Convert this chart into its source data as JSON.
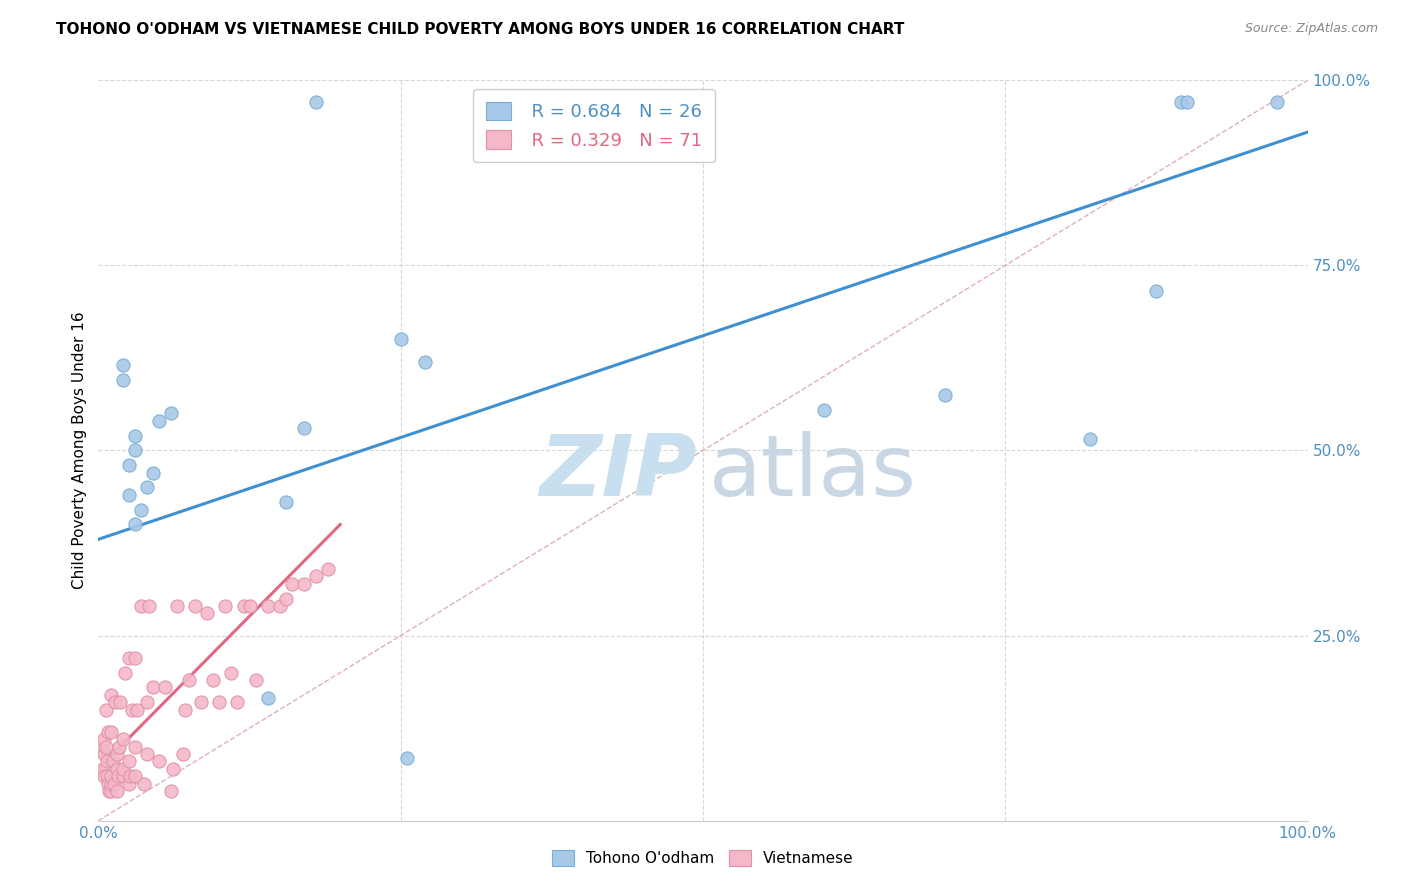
{
  "title": "TOHONO O'ODHAM VS VIETNAMESE CHILD POVERTY AMONG BOYS UNDER 16 CORRELATION CHART",
  "source": "Source: ZipAtlas.com",
  "ylabel": "Child Poverty Among Boys Under 16",
  "xlim": [
    0,
    1
  ],
  "ylim": [
    0,
    1
  ],
  "legend_r1": "R = 0.684",
  "legend_n1": "N = 26",
  "legend_r2": "R = 0.329",
  "legend_n2": "N = 71",
  "blue_color": "#a8c8e8",
  "blue_edge": "#7aaed0",
  "pink_color": "#f4b8c8",
  "pink_edge": "#e090a8",
  "blue_line_color": "#4090d0",
  "pink_line_color": "#e06880",
  "diag_color": "#d0d0d0",
  "grid_color": "#d8d8d8",
  "tick_color": "#5090c0",
  "tohono_x": [
    0.02,
    0.02,
    0.025,
    0.025,
    0.03,
    0.03,
    0.03,
    0.035,
    0.04,
    0.045,
    0.05,
    0.06,
    0.14,
    0.155,
    0.17,
    0.18,
    0.25,
    0.255,
    0.27,
    0.6,
    0.7,
    0.82,
    0.875,
    0.895,
    0.9,
    0.975
  ],
  "tohono_y": [
    0.595,
    0.615,
    0.44,
    0.48,
    0.5,
    0.52,
    0.4,
    0.42,
    0.45,
    0.47,
    0.54,
    0.55,
    0.165,
    0.43,
    0.53,
    0.97,
    0.65,
    0.085,
    0.62,
    0.555,
    0.575,
    0.515,
    0.715,
    0.97,
    0.97,
    0.97
  ],
  "viet_x": [
    0.003,
    0.004,
    0.005,
    0.005,
    0.005,
    0.006,
    0.006,
    0.007,
    0.007,
    0.008,
    0.008,
    0.009,
    0.01,
    0.01,
    0.01,
    0.01,
    0.01,
    0.012,
    0.013,
    0.014,
    0.015,
    0.015,
    0.015,
    0.016,
    0.017,
    0.018,
    0.02,
    0.02,
    0.02,
    0.022,
    0.025,
    0.025,
    0.025,
    0.026,
    0.028,
    0.03,
    0.03,
    0.03,
    0.032,
    0.035,
    0.038,
    0.04,
    0.04,
    0.042,
    0.045,
    0.05,
    0.055,
    0.06,
    0.062,
    0.065,
    0.07,
    0.072,
    0.075,
    0.08,
    0.085,
    0.09,
    0.095,
    0.1,
    0.105,
    0.11,
    0.115,
    0.12,
    0.125,
    0.13,
    0.14,
    0.15,
    0.155,
    0.16,
    0.17,
    0.18,
    0.19
  ],
  "viet_y": [
    0.095,
    0.07,
    0.06,
    0.09,
    0.11,
    0.1,
    0.15,
    0.06,
    0.08,
    0.05,
    0.12,
    0.04,
    0.04,
    0.05,
    0.06,
    0.12,
    0.17,
    0.08,
    0.05,
    0.16,
    0.04,
    0.07,
    0.09,
    0.06,
    0.1,
    0.16,
    0.06,
    0.07,
    0.11,
    0.2,
    0.05,
    0.08,
    0.22,
    0.06,
    0.15,
    0.06,
    0.1,
    0.22,
    0.15,
    0.29,
    0.05,
    0.09,
    0.16,
    0.29,
    0.18,
    0.08,
    0.18,
    0.04,
    0.07,
    0.29,
    0.09,
    0.15,
    0.19,
    0.29,
    0.16,
    0.28,
    0.19,
    0.16,
    0.29,
    0.2,
    0.16,
    0.29,
    0.29,
    0.19,
    0.29,
    0.29,
    0.3,
    0.32,
    0.32,
    0.33,
    0.34
  ],
  "blue_line_x": [
    0.0,
    1.0
  ],
  "blue_line_y": [
    0.38,
    0.93
  ],
  "pink_line_x": [
    0.0,
    0.2
  ],
  "pink_line_y": [
    0.07,
    0.4
  ],
  "diag_line_x": [
    0.0,
    1.0
  ],
  "diag_line_y": [
    0.0,
    1.0
  ]
}
